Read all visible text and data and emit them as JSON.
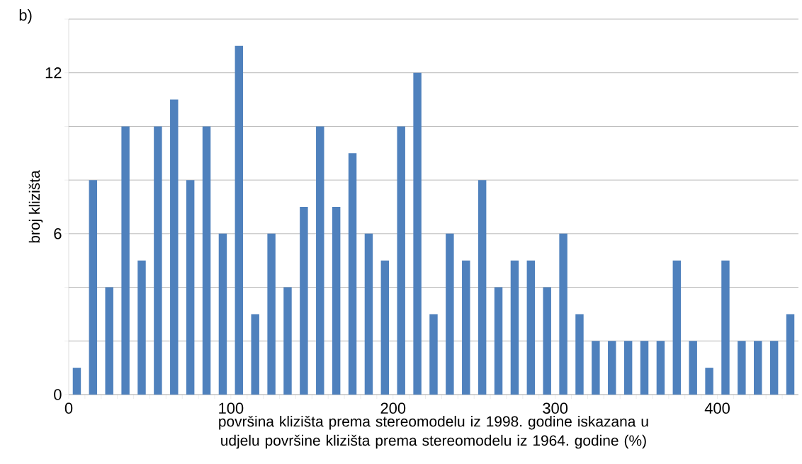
{
  "chart_data": {
    "type": "histogram",
    "title": "b)",
    "xlabel": "površina klizišta prema stereomodelu iz 1998. godine iskazana u udjelu površine klizišta prema stereomodelu iz 1964. godine (%)",
    "ylabel": "broj klizišta",
    "bins": [
      0,
      10,
      20,
      30,
      40,
      50,
      60,
      70,
      80,
      90,
      100,
      110,
      120,
      130,
      140,
      150,
      160,
      170,
      180,
      190,
      200,
      210,
      220,
      230,
      240,
      250,
      260,
      270,
      280,
      290,
      300,
      310,
      320,
      330,
      340,
      350,
      360,
      370,
      380,
      390,
      400,
      410,
      420,
      430,
      440,
      450
    ],
    "values": [
      1,
      8,
      4,
      10,
      5,
      10,
      11,
      8,
      10,
      6,
      13,
      3,
      6,
      4,
      7,
      10,
      7,
      9,
      6,
      5,
      10,
      12,
      3,
      6,
      5,
      8,
      4,
      5,
      5,
      4,
      6,
      3,
      2,
      2,
      2,
      2,
      2,
      5,
      2,
      1,
      5,
      2,
      2,
      2,
      3
    ],
    "color": "#4f81bd",
    "xlim": [
      0,
      450
    ],
    "xticks": [
      0,
      {
        "value": 10,
        "label": null
      },
      {
        "value": 20,
        "label": null
      },
      {
        "value": 30,
        "label": null
      },
      {
        "value": 40,
        "label": null
      },
      {
        "value": 50,
        "label": null
      },
      {
        "value": 60,
        "label": null
      },
      {
        "value": 70,
        "label": null
      },
      {
        "value": 80,
        "label": null
      },
      {
        "value": 90,
        "label": null
      },
      100,
      {
        "value": 110,
        "label": null
      },
      {
        "value": 120,
        "label": null
      },
      {
        "value": 130,
        "label": null
      },
      {
        "value": 140,
        "label": null
      },
      {
        "value": 150,
        "label": null
      },
      {
        "value": 160,
        "label": null
      },
      {
        "value": 170,
        "label": null
      },
      {
        "value": 180,
        "label": null
      },
      {
        "value": 190,
        "label": null
      },
      200,
      {
        "value": 210,
        "label": null
      },
      {
        "value": 220,
        "label": null
      },
      {
        "value": 230,
        "label": null
      },
      {
        "value": 240,
        "label": null
      },
      {
        "value": 250,
        "label": null
      },
      {
        "value": 260,
        "label": null
      },
      {
        "value": 270,
        "label": null
      },
      {
        "value": 280,
        "label": null
      },
      {
        "value": 290,
        "label": null
      },
      300,
      {
        "value": 310,
        "label": null
      },
      {
        "value": 320,
        "label": null
      },
      {
        "value": 330,
        "label": null
      },
      {
        "value": 340,
        "label": null
      },
      {
        "value": 350,
        "label": null
      },
      {
        "value": 360,
        "label": null
      },
      {
        "value": 370,
        "label": null
      },
      {
        "value": 380,
        "label": null
      },
      {
        "value": 390,
        "label": null
      },
      400,
      {
        "value": 410,
        "label": null
      },
      {
        "value": 420,
        "label": null
      },
      {
        "value": 430,
        "label": null
      },
      {
        "value": 440,
        "label": null
      }
    ],
    "ylim": [
      0,
      14
    ],
    "yticks": [
      0,
      {
        "value": 2,
        "label": null
      },
      {
        "value": 4,
        "label": null
      },
      6,
      {
        "value": 8,
        "label": null
      },
      {
        "value": 10,
        "label": null
      },
      12,
      {
        "value": 14,
        "label": null
      }
    ],
    "grid": "y"
  }
}
